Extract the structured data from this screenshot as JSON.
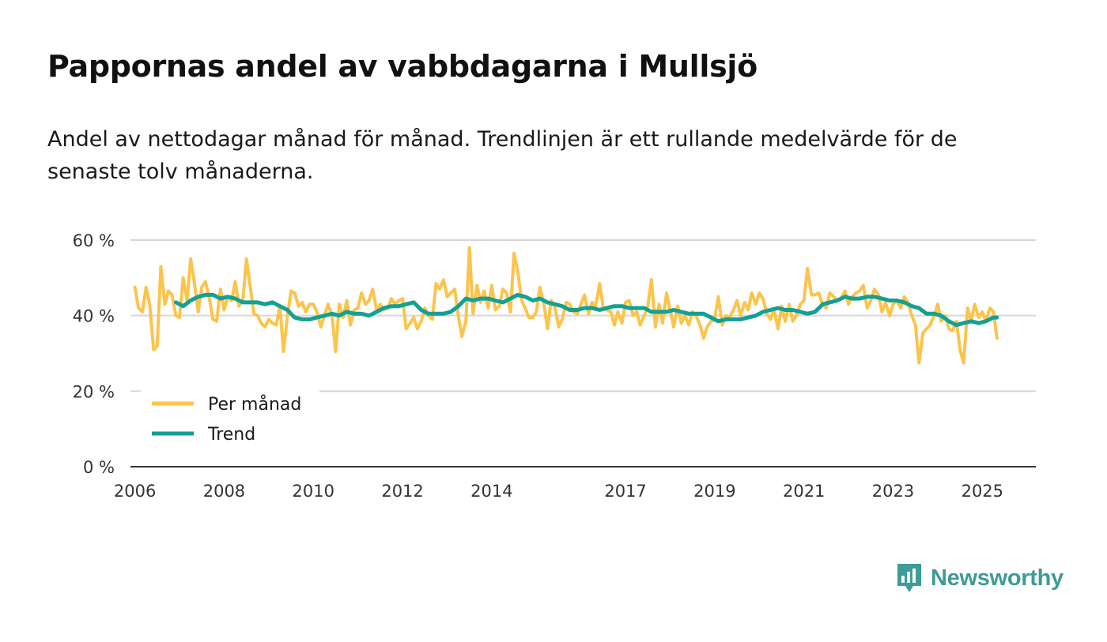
{
  "header": {
    "title": "Pappornas andel av vabbdagarna i Mullsjö",
    "subtitle": "Andel av nettodagar månad för månad. Trendlinjen är ett rullande medelvärde för de senaste tolv månaderna."
  },
  "brand": {
    "name": "Newsworthy",
    "color": "#3d9c95"
  },
  "chart_data": {
    "type": "line",
    "title": "Pappornas andel av vabbdagarna i Mullsjö",
    "xlabel": "",
    "ylabel": "",
    "ylim": [
      0,
      60
    ],
    "xlim": [
      2005.9,
      2026.2
    ],
    "y_ticks": [
      {
        "value": 0,
        "label": "0 %"
      },
      {
        "value": 20,
        "label": "20 %"
      },
      {
        "value": 40,
        "label": "40 %"
      },
      {
        "value": 60,
        "label": "60 %"
      }
    ],
    "x_ticks": [
      {
        "value": 2006,
        "label": "2006"
      },
      {
        "value": 2008,
        "label": "2008"
      },
      {
        "value": 2010,
        "label": "2010"
      },
      {
        "value": 2012,
        "label": "2012"
      },
      {
        "value": 2014,
        "label": "2014"
      },
      {
        "value": 2017,
        "label": "2017"
      },
      {
        "value": 2019,
        "label": "2019"
      },
      {
        "value": 2021,
        "label": "2021"
      },
      {
        "value": 2023,
        "label": "2023"
      },
      {
        "value": 2025,
        "label": "2025"
      }
    ],
    "grid": true,
    "legend_position": "bottom-left",
    "series": [
      {
        "name": "Per månad",
        "color": "#fbc44c",
        "x": [
          2006.0,
          2006.08,
          2006.17,
          2006.25,
          2006.33,
          2006.42,
          2006.5,
          2006.58,
          2006.67,
          2006.75,
          2006.83,
          2006.92,
          2007.0,
          2007.08,
          2007.17,
          2007.25,
          2007.33,
          2007.42,
          2007.5,
          2007.58,
          2007.67,
          2007.75,
          2007.83,
          2007.92,
          2008.0,
          2008.08,
          2008.17,
          2008.25,
          2008.33,
          2008.42,
          2008.5,
          2008.58,
          2008.67,
          2008.75,
          2008.83,
          2008.92,
          2009.0,
          2009.08,
          2009.17,
          2009.25,
          2009.33,
          2009.42,
          2009.5,
          2009.58,
          2009.67,
          2009.75,
          2009.83,
          2009.92,
          2010.0,
          2010.08,
          2010.17,
          2010.25,
          2010.33,
          2010.42,
          2010.5,
          2010.58,
          2010.67,
          2010.75,
          2010.83,
          2010.92,
          2011.0,
          2011.08,
          2011.17,
          2011.25,
          2011.33,
          2011.42,
          2011.5,
          2011.58,
          2011.67,
          2011.75,
          2011.83,
          2011.92,
          2012.0,
          2012.08,
          2012.17,
          2012.25,
          2012.33,
          2012.42,
          2012.5,
          2012.58,
          2012.67,
          2012.75,
          2012.83,
          2012.92,
          2013.0,
          2013.08,
          2013.17,
          2013.25,
          2013.33,
          2013.42,
          2013.5,
          2013.58,
          2013.67,
          2013.75,
          2013.83,
          2013.92,
          2014.0,
          2014.08,
          2014.17,
          2014.25,
          2014.33,
          2014.42,
          2014.5,
          2014.58,
          2014.67,
          2014.75,
          2014.83,
          2014.92,
          2015.0,
          2015.08,
          2015.17,
          2015.25,
          2015.33,
          2015.42,
          2015.5,
          2015.58,
          2015.67,
          2015.75,
          2015.83,
          2015.92,
          2016.0,
          2016.08,
          2016.17,
          2016.25,
          2016.33,
          2016.42,
          2016.5,
          2016.58,
          2016.67,
          2016.75,
          2016.83,
          2016.92,
          2017.0,
          2017.08,
          2017.17,
          2017.25,
          2017.33,
          2017.42,
          2017.5,
          2017.58,
          2017.67,
          2017.75,
          2017.83,
          2017.92,
          2018.0,
          2018.08,
          2018.17,
          2018.25,
          2018.33,
          2018.42,
          2018.5,
          2018.58,
          2018.67,
          2018.75,
          2018.83,
          2018.92,
          2019.0,
          2019.08,
          2019.17,
          2019.25,
          2019.33,
          2019.42,
          2019.5,
          2019.58,
          2019.67,
          2019.75,
          2019.83,
          2019.92,
          2020.0,
          2020.08,
          2020.17,
          2020.25,
          2020.33,
          2020.42,
          2020.5,
          2020.58,
          2020.67,
          2020.75,
          2020.83,
          2020.92,
          2021.0,
          2021.08,
          2021.17,
          2021.25,
          2021.33,
          2021.42,
          2021.5,
          2021.58,
          2021.67,
          2021.75,
          2021.83,
          2021.92,
          2022.0,
          2022.08,
          2022.17,
          2022.25,
          2022.33,
          2022.42,
          2022.5,
          2022.58,
          2022.67,
          2022.75,
          2022.83,
          2022.92,
          2023.0,
          2023.08,
          2023.17,
          2023.25,
          2023.33,
          2023.42,
          2023.5,
          2023.58,
          2023.67,
          2023.75,
          2023.83,
          2023.92,
          2024.0,
          2024.08,
          2024.17,
          2024.25,
          2024.33,
          2024.42,
          2024.5,
          2024.58,
          2024.67,
          2024.75,
          2024.83,
          2024.92,
          2025.0,
          2025.08,
          2025.17,
          2025.25,
          2025.33
        ],
        "values": [
          47.5,
          42,
          41,
          47.5,
          43,
          31,
          32,
          53,
          43,
          46.5,
          45.5,
          40,
          39.5,
          50,
          44,
          55,
          49,
          41,
          47.5,
          49,
          44.5,
          39,
          38.5,
          47,
          41.5,
          45,
          44,
          49,
          42.5,
          44,
          55,
          48,
          40.5,
          40,
          38,
          37,
          39,
          38,
          37.5,
          42.5,
          30.5,
          40,
          46.5,
          46,
          42.5,
          43.5,
          41,
          43,
          43,
          41,
          37,
          40,
          43,
          40,
          30.5,
          43,
          39.5,
          44,
          37.5,
          41.5,
          42,
          46,
          43,
          44,
          47,
          41.5,
          43,
          41.5,
          42,
          44.5,
          43,
          44,
          44.5,
          36.5,
          38,
          39.5,
          36.5,
          38.5,
          42,
          40,
          39,
          48.5,
          47,
          49.5,
          45,
          46,
          47,
          40,
          34.5,
          38.5,
          58,
          40.5,
          48,
          43.5,
          46.5,
          42,
          48,
          41.5,
          42.5,
          47,
          46,
          41,
          56.5,
          52,
          44,
          42,
          39.5,
          39.5,
          41,
          47.5,
          43,
          36.5,
          44,
          42,
          37,
          39,
          43.5,
          43,
          41,
          40.5,
          43,
          45.5,
          40.5,
          43.5,
          42.5,
          48.5,
          42,
          41.5,
          41,
          37.5,
          41,
          38,
          43.5,
          44,
          40,
          41,
          37.5,
          40,
          42.5,
          49.5,
          37,
          43,
          38,
          46,
          41.5,
          37,
          42.5,
          38,
          40,
          37.5,
          41,
          40,
          37.5,
          34,
          37,
          38.5,
          39,
          45,
          37.5,
          40,
          39.5,
          41.5,
          44,
          40,
          43.5,
          41.5,
          46,
          43,
          46,
          44.5,
          40.5,
          39,
          41.5,
          36.5,
          42.5,
          38.5,
          43,
          38.5,
          40,
          43,
          44,
          52.5,
          45.5,
          45.5,
          46,
          43,
          42,
          46,
          45,
          44,
          44.5,
          46.5,
          43,
          45,
          46,
          46.5,
          48,
          42,
          44,
          47,
          45.5,
          41,
          43.5,
          40,
          43,
          44,
          42,
          45,
          43.5,
          40,
          37.5,
          27.5,
          35.5,
          36.5,
          37.5,
          40,
          43,
          38.5,
          40,
          36.5,
          36,
          38.5,
          31,
          27.5,
          42,
          38.5,
          43,
          39.5,
          41,
          38.5,
          42,
          41,
          34
        ]
      },
      {
        "name": "Trend",
        "color": "#14a093",
        "x": [
          2006.92,
          2007.08,
          2007.25,
          2007.42,
          2007.58,
          2007.75,
          2007.92,
          2008.08,
          2008.25,
          2008.42,
          2008.58,
          2008.75,
          2008.92,
          2009.08,
          2009.25,
          2009.42,
          2009.58,
          2009.75,
          2009.92,
          2010.08,
          2010.25,
          2010.42,
          2010.58,
          2010.75,
          2010.92,
          2011.08,
          2011.25,
          2011.42,
          2011.58,
          2011.75,
          2011.92,
          2012.08,
          2012.25,
          2012.42,
          2012.58,
          2012.75,
          2012.92,
          2013.08,
          2013.25,
          2013.42,
          2013.58,
          2013.75,
          2013.92,
          2014.08,
          2014.25,
          2014.42,
          2014.58,
          2014.75,
          2014.92,
          2015.08,
          2015.25,
          2015.42,
          2015.58,
          2015.75,
          2015.92,
          2016.08,
          2016.25,
          2016.42,
          2016.58,
          2016.75,
          2016.92,
          2017.08,
          2017.25,
          2017.42,
          2017.58,
          2017.75,
          2017.92,
          2018.08,
          2018.25,
          2018.42,
          2018.58,
          2018.75,
          2018.92,
          2019.08,
          2019.25,
          2019.42,
          2019.58,
          2019.75,
          2019.92,
          2020.08,
          2020.25,
          2020.42,
          2020.58,
          2020.75,
          2020.92,
          2021.08,
          2021.25,
          2021.42,
          2021.58,
          2021.75,
          2021.92,
          2022.08,
          2022.25,
          2022.42,
          2022.58,
          2022.75,
          2022.92,
          2023.08,
          2023.25,
          2023.42,
          2023.58,
          2023.75,
          2023.92,
          2024.08,
          2024.25,
          2024.42,
          2024.58,
          2024.75,
          2024.92,
          2025.08,
          2025.25,
          2025.33
        ],
        "values": [
          43.5,
          42.5,
          44,
          45,
          45.5,
          45.5,
          44.5,
          45,
          44.5,
          43.5,
          43.5,
          43.5,
          43,
          43.5,
          42.5,
          41.5,
          39.5,
          39,
          39,
          39.5,
          40,
          40.5,
          40,
          41,
          40.5,
          40.5,
          40,
          41,
          42,
          42.5,
          42.5,
          43,
          43.5,
          41.5,
          40.5,
          40.5,
          40.5,
          41,
          42.5,
          44.5,
          44,
          44.5,
          44.5,
          44,
          43.5,
          44.5,
          45.5,
          45,
          44,
          44.5,
          43.5,
          43,
          42.5,
          41.5,
          41.5,
          42,
          42,
          41.5,
          42,
          42.5,
          42.5,
          42,
          42,
          42,
          41,
          41,
          41,
          41.5,
          41,
          40.5,
          40.5,
          40.5,
          39.5,
          38.5,
          39,
          39,
          39,
          39.5,
          40,
          41,
          41.5,
          42,
          41.5,
          41.5,
          41,
          40.5,
          41,
          43,
          43.5,
          44,
          45,
          44.5,
          44.5,
          45,
          45,
          44.5,
          44,
          44,
          43.5,
          42.5,
          42,
          40.5,
          40.5,
          40,
          38.5,
          37.5,
          38,
          38.5,
          38,
          38.5,
          39.5,
          39.5
        ]
      }
    ]
  }
}
